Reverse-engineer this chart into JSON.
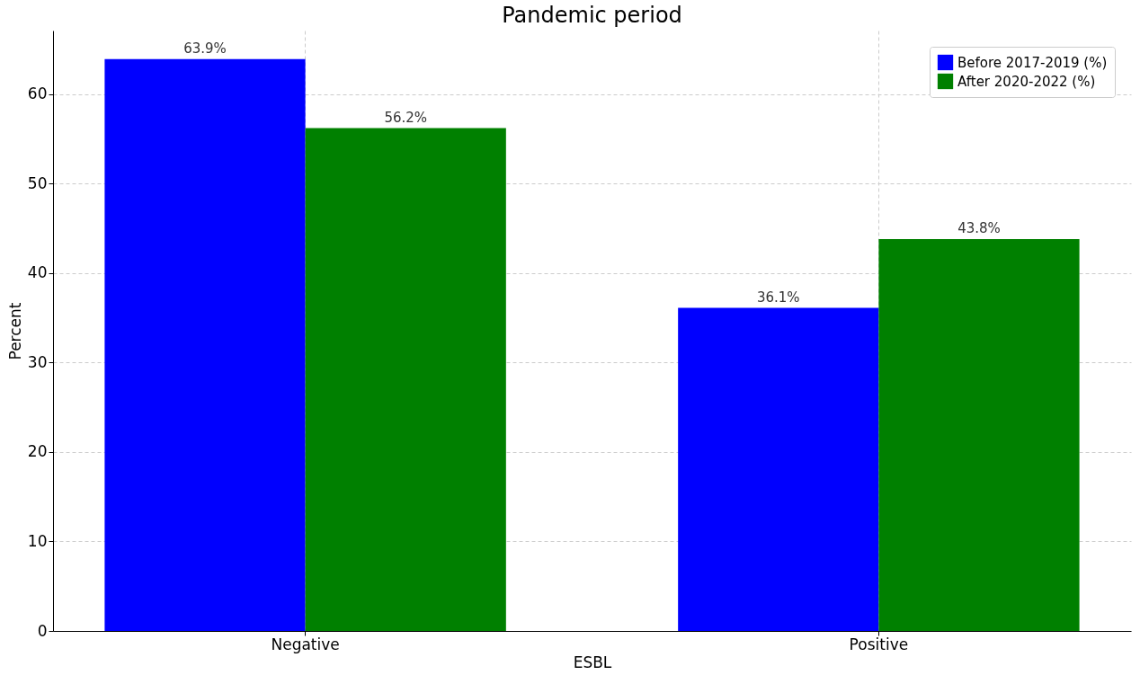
{
  "chart_data": {
    "type": "bar",
    "title": "Pandemic period",
    "xlabel": "ESBL",
    "ylabel": "Percent",
    "categories": [
      "Negative",
      "Positive"
    ],
    "series": [
      {
        "name": "Before 2017-2019 (%)",
        "color": "#0000ff",
        "values": [
          63.9,
          36.1
        ],
        "value_labels": [
          "63.9%",
          "36.1%"
        ]
      },
      {
        "name": "After 2020-2022 (%)",
        "color": "#008000",
        "values": [
          56.2,
          43.8
        ],
        "value_labels": [
          "56.2%",
          "43.8%"
        ]
      }
    ],
    "ylim": [
      0,
      67.1
    ],
    "yticks": [
      0,
      10,
      20,
      30,
      40,
      50,
      60
    ],
    "grid": true,
    "legend": "top right"
  }
}
